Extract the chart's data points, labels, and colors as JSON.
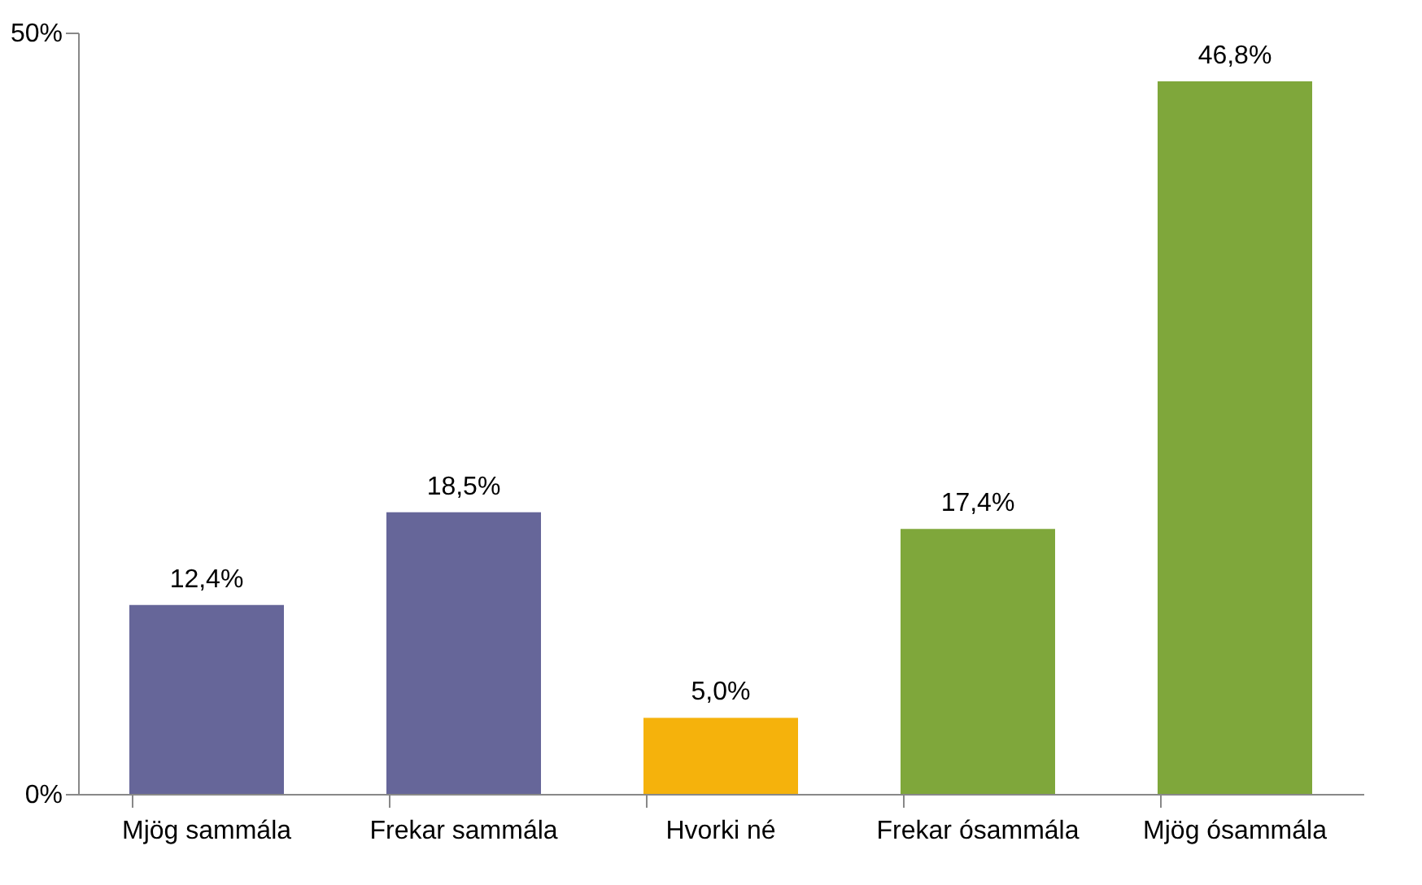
{
  "chart_data": {
    "type": "bar",
    "categories": [
      "Mjög sammála",
      "Frekar sammála",
      "Hvorki né",
      "Frekar ósammála",
      "Mjög ósammála"
    ],
    "values": [
      12.4,
      18.5,
      5.0,
      17.4,
      46.8
    ],
    "colors": [
      "#666699",
      "#666699",
      "#f5b20c",
      "#7fa73b",
      "#7fa73b"
    ],
    "value_labels": [
      "12,4%",
      "18,5%",
      "5,0%",
      "17,4%",
      "46,8%"
    ],
    "ylim": [
      0,
      50
    ],
    "yticks": [
      {
        "value": 0,
        "label": "0%"
      },
      {
        "value": 50,
        "label": "50%"
      }
    ],
    "grid": false
  }
}
